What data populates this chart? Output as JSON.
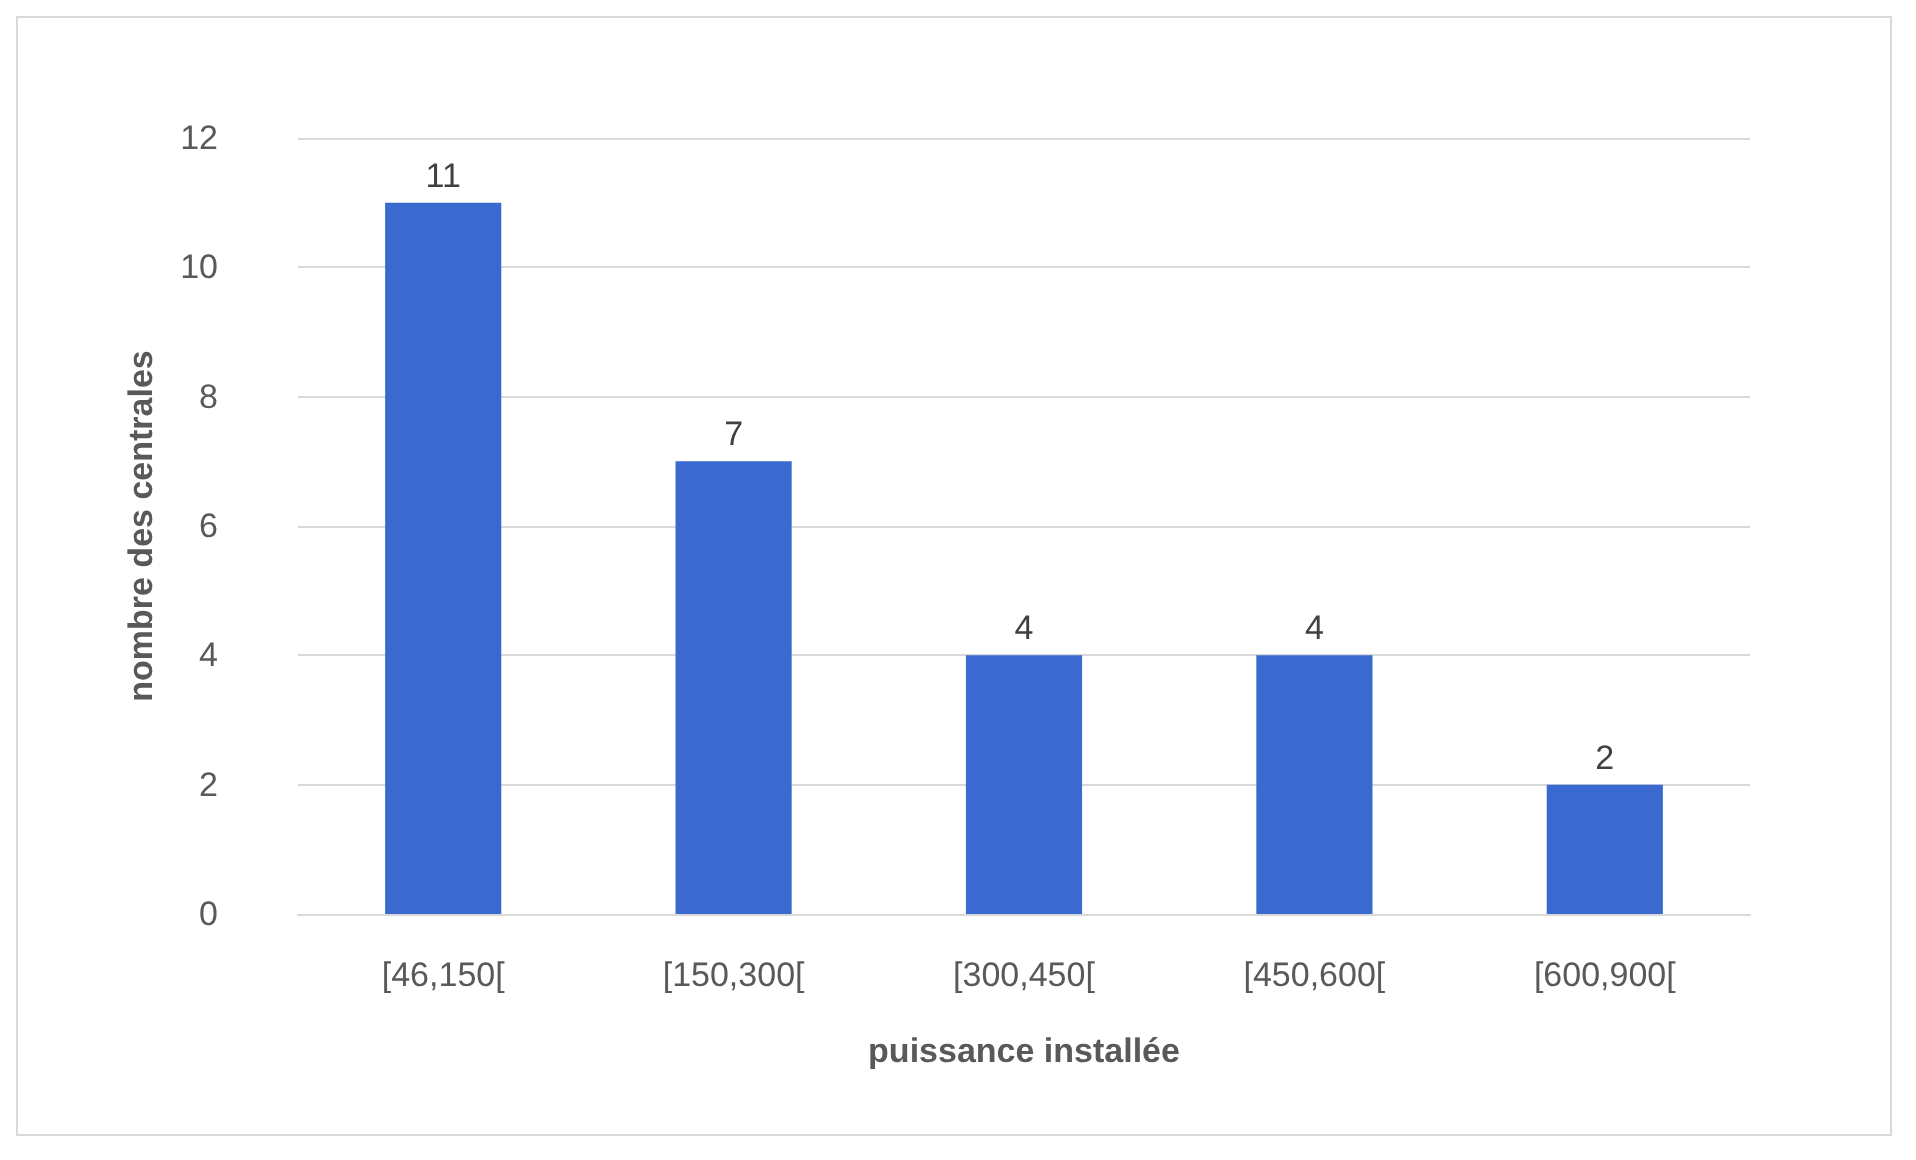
{
  "chart_data": {
    "type": "bar",
    "xlabel": "puissance installée",
    "ylabel": "nombre des centrales",
    "categories": [
      "[46,150[",
      "[150,300[",
      "[300,450[",
      "[450,600[",
      "[600,900["
    ],
    "values": [
      11,
      7,
      4,
      4,
      2
    ],
    "color": "#3a6ad0",
    "ylim": [
      0,
      12
    ],
    "yticks": [
      0,
      2,
      4,
      6,
      8,
      10,
      12
    ],
    "grid": "y",
    "data_labels": true
  }
}
